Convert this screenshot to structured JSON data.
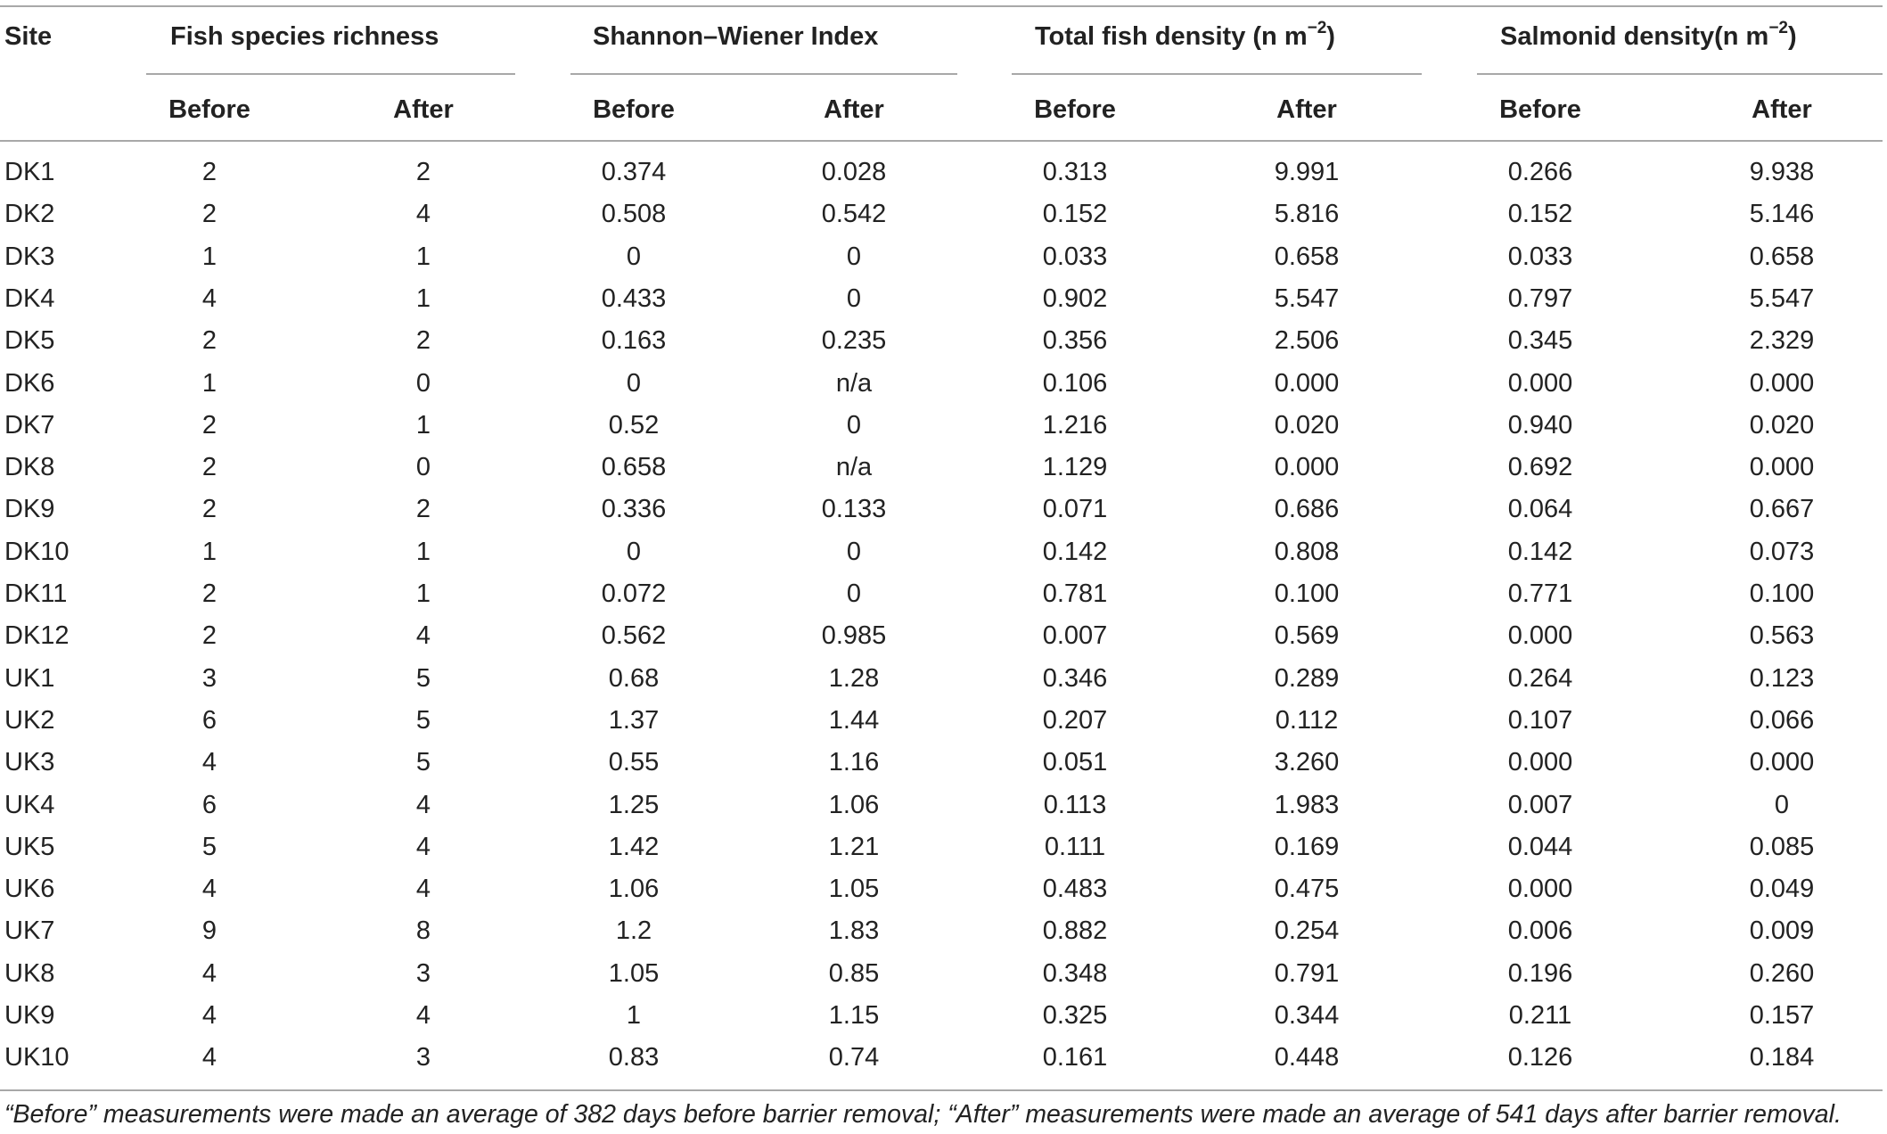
{
  "table": {
    "header": {
      "site": "Site",
      "groups": [
        {
          "title": "Fish species richness",
          "unit_prefix": "",
          "sup": "",
          "unit_suffix": ""
        },
        {
          "title": "Shannon–Wiener Index",
          "unit_prefix": "",
          "sup": "",
          "unit_suffix": ""
        },
        {
          "title": "Total fish density ",
          "unit_prefix": "(n m",
          "sup": "−2",
          "unit_suffix": ")"
        },
        {
          "title": "Salmonid density",
          "unit_prefix": "(n m",
          "sup": "−2",
          "unit_suffix": ")"
        }
      ],
      "before_label": "Before",
      "after_label": "After"
    },
    "rows": [
      [
        "DK1",
        "2",
        "2",
        "0.374",
        "0.028",
        "0.313",
        "9.991",
        "0.266",
        "9.938"
      ],
      [
        "DK2",
        "2",
        "4",
        "0.508",
        "0.542",
        "0.152",
        "5.816",
        "0.152",
        "5.146"
      ],
      [
        "DK3",
        "1",
        "1",
        "0",
        "0",
        "0.033",
        "0.658",
        "0.033",
        "0.658"
      ],
      [
        "DK4",
        "4",
        "1",
        "0.433",
        "0",
        "0.902",
        "5.547",
        "0.797",
        "5.547"
      ],
      [
        "DK5",
        "2",
        "2",
        "0.163",
        "0.235",
        "0.356",
        "2.506",
        "0.345",
        "2.329"
      ],
      [
        "DK6",
        "1",
        "0",
        "0",
        "n/a",
        "0.106",
        "0.000",
        "0.000",
        "0.000"
      ],
      [
        "DK7",
        "2",
        "1",
        "0.52",
        "0",
        "1.216",
        "0.020",
        "0.940",
        "0.020"
      ],
      [
        "DK8",
        "2",
        "0",
        "0.658",
        "n/a",
        "1.129",
        "0.000",
        "0.692",
        "0.000"
      ],
      [
        "DK9",
        "2",
        "2",
        "0.336",
        "0.133",
        "0.071",
        "0.686",
        "0.064",
        "0.667"
      ],
      [
        "DK10",
        "1",
        "1",
        "0",
        "0",
        "0.142",
        "0.808",
        "0.142",
        "0.073"
      ],
      [
        "DK11",
        "2",
        "1",
        "0.072",
        "0",
        "0.781",
        "0.100",
        "0.771",
        "0.100"
      ],
      [
        "DK12",
        "2",
        "4",
        "0.562",
        "0.985",
        "0.007",
        "0.569",
        "0.000",
        "0.563"
      ],
      [
        "UK1",
        "3",
        "5",
        "0.68",
        "1.28",
        "0.346",
        "0.289",
        "0.264",
        "0.123"
      ],
      [
        "UK2",
        "6",
        "5",
        "1.37",
        "1.44",
        "0.207",
        "0.112",
        "0.107",
        "0.066"
      ],
      [
        "UK3",
        "4",
        "5",
        "0.55",
        "1.16",
        "0.051",
        "3.260",
        "0.000",
        "0.000"
      ],
      [
        "UK4",
        "6",
        "4",
        "1.25",
        "1.06",
        "0.113",
        "1.983",
        "0.007",
        "0"
      ],
      [
        "UK5",
        "5",
        "4",
        "1.42",
        "1.21",
        "0.111",
        "0.169",
        "0.044",
        "0.085"
      ],
      [
        "UK6",
        "4",
        "4",
        "1.06",
        "1.05",
        "0.483",
        "0.475",
        "0.000",
        "0.049"
      ],
      [
        "UK7",
        "9",
        "8",
        "1.2",
        "1.83",
        "0.882",
        "0.254",
        "0.006",
        "0.009"
      ],
      [
        "UK8",
        "4",
        "3",
        "1.05",
        "0.85",
        "0.348",
        "0.791",
        "0.196",
        "0.260"
      ],
      [
        "UK9",
        "4",
        "4",
        "1",
        "1.15",
        "0.325",
        "0.344",
        "0.211",
        "0.157"
      ],
      [
        "UK10",
        "4",
        "3",
        "0.83",
        "0.74",
        "0.161",
        "0.448",
        "0.126",
        "0.184"
      ]
    ],
    "footnote": "“Before” measurements were made an average of 382 days before barrier removal; “After” measurements were made an average of 541 days after barrier removal."
  }
}
